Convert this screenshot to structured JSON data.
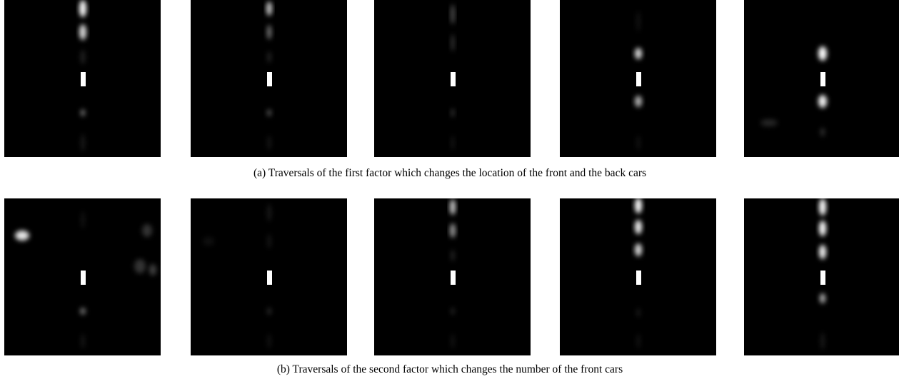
{
  "figure": {
    "captions": [
      "(a) Traversals of the first factor which changes the location of the front and the back cars",
      "(b) Traversals of the second factor which changes the number of the front cars"
    ]
  }
}
